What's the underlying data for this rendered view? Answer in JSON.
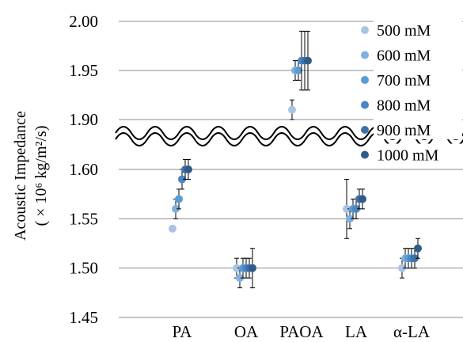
{
  "chart_data": {
    "type": "scatter",
    "ylabel_line1": "Acoustic Impedance",
    "ylabel_line2": "( × 10⁶ kg/m²/s)",
    "categories": [
      "PA",
      "OA",
      "PAOA",
      "LA",
      "α-LA"
    ],
    "axis_break": true,
    "y_ticks_upper": [
      "2.00",
      "1.95",
      "1.90"
    ],
    "y_ticks_lower": [
      "1.60",
      "1.55",
      "1.50",
      "1.45"
    ],
    "ylim_upper": [
      1.875,
      2.0
    ],
    "ylim_lower": [
      1.45,
      1.625
    ],
    "grid": true,
    "legend_position": "right",
    "series": [
      {
        "name": "500 mM",
        "color": "#a9c4e3",
        "values": [
          1.54,
          1.5,
          1.91,
          1.56,
          1.5
        ],
        "errors": [
          0.0,
          0.01,
          0.01,
          0.03,
          0.01
        ]
      },
      {
        "name": "600 mM",
        "color": "#7fb0e0",
        "values": [
          1.56,
          1.49,
          1.95,
          1.55,
          1.51
        ],
        "errors": [
          0.01,
          0.01,
          0.01,
          0.01,
          0.01
        ]
      },
      {
        "name": "700 mM",
        "color": "#5b9bd5",
        "values": [
          1.57,
          1.5,
          1.95,
          1.56,
          1.51
        ],
        "errors": [
          0.01,
          0.01,
          0.01,
          0.01,
          0.01
        ]
      },
      {
        "name": "800 mM",
        "color": "#4a86c4",
        "values": [
          1.59,
          1.5,
          1.96,
          1.56,
          1.51
        ],
        "errors": [
          0.01,
          0.01,
          0.03,
          0.01,
          0.01
        ]
      },
      {
        "name": "900 mM",
        "color": "#3d72a9",
        "values": [
          1.6,
          1.5,
          1.96,
          1.57,
          1.51
        ],
        "errors": [
          0.01,
          0.01,
          0.03,
          0.01,
          0.01
        ]
      },
      {
        "name": "1000 mM",
        "color": "#2f5b89",
        "values": [
          1.6,
          1.5,
          1.96,
          1.57,
          1.52
        ],
        "errors": [
          0.01,
          0.02,
          0.03,
          0.01,
          0.01
        ]
      }
    ]
  }
}
